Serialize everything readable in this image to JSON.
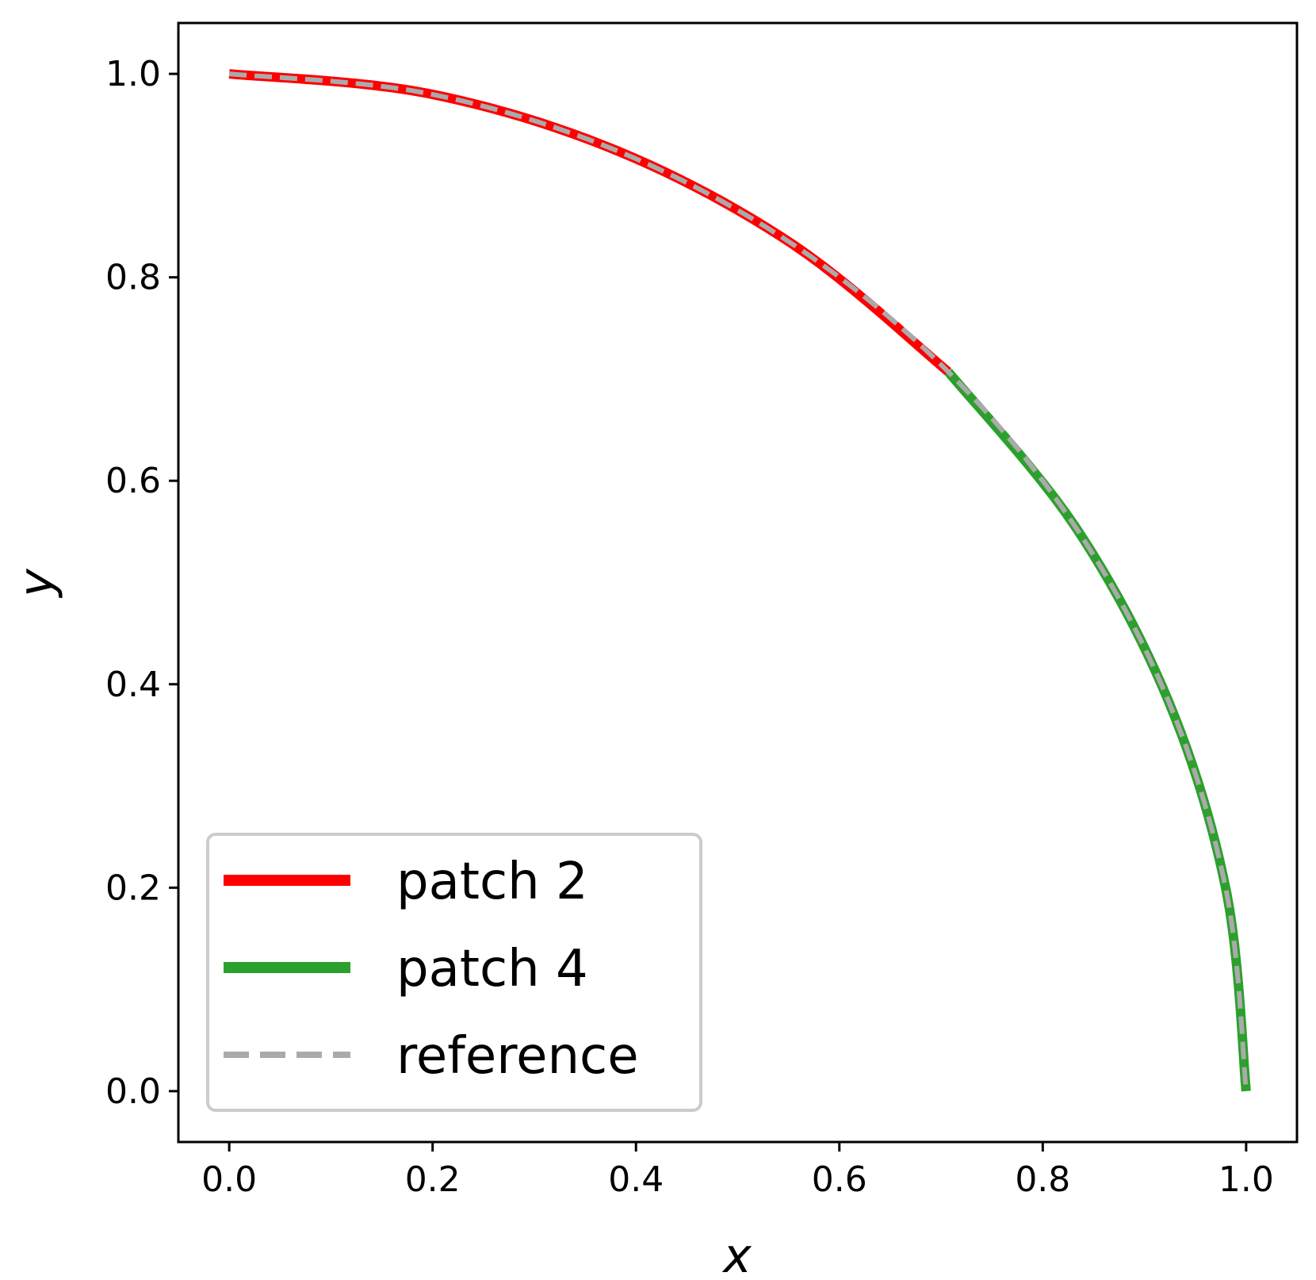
{
  "chart_data": {
    "type": "line",
    "title": "",
    "xlabel": "x",
    "ylabel": "y",
    "xlim": [
      -0.05,
      1.05
    ],
    "ylim": [
      -0.05,
      1.05
    ],
    "grid": false,
    "legend_position": "lower-left",
    "x_ticks": [
      "0.0",
      "0.2",
      "0.4",
      "0.6",
      "0.8",
      "1.0"
    ],
    "y_ticks": [
      "0.0",
      "0.2",
      "0.4",
      "0.6",
      "0.8",
      "1.0"
    ],
    "series": [
      {
        "name": "patch 2",
        "color": "#ff0000",
        "style": "solid",
        "points": [
          [
            0.0,
            1.0
          ],
          [
            0.1951,
            0.9808
          ],
          [
            0.3827,
            0.9239
          ],
          [
            0.5556,
            0.8315
          ],
          [
            0.7071,
            0.7071
          ]
        ]
      },
      {
        "name": "patch 4",
        "color": "#2ca02c",
        "style": "solid",
        "points": [
          [
            0.7071,
            0.7071
          ],
          [
            0.8315,
            0.5556
          ],
          [
            0.9239,
            0.3827
          ],
          [
            0.9808,
            0.1951
          ],
          [
            1.0,
            0.0
          ]
        ]
      },
      {
        "name": "reference",
        "color": "#aaaaaa",
        "style": "dashed",
        "points": [
          [
            0.0,
            1.0
          ],
          [
            0.1951,
            0.9808
          ],
          [
            0.3827,
            0.9239
          ],
          [
            0.5556,
            0.8315
          ],
          [
            0.7071,
            0.7071
          ],
          [
            0.8315,
            0.5556
          ],
          [
            0.9239,
            0.3827
          ],
          [
            0.9808,
            0.1951
          ],
          [
            1.0,
            0.0
          ]
        ]
      }
    ]
  }
}
